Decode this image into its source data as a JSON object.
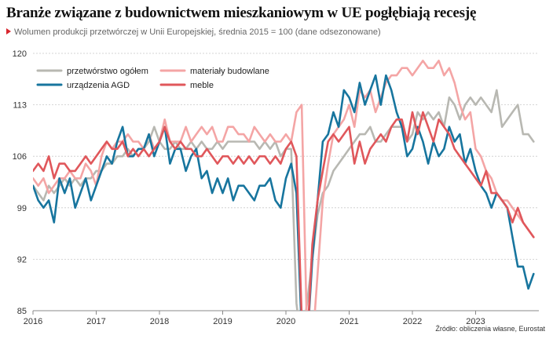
{
  "title": "Branże związane z budownictwem mieszkaniowym w UE pogłębiają recesję",
  "subtitle": "Wolumen produkcji przetwórczej w Unii Europejskiej, średnia 2015 = 100 (dane odsezonowane)",
  "source": "Źródło: obliczenia własne, Eurostat",
  "chart_data": {
    "type": "line",
    "ylim": [
      85,
      120
    ],
    "xlim": [
      2016,
      2024.0
    ],
    "yticks": [
      85,
      92,
      99,
      106,
      113,
      120
    ],
    "xticks": [
      2016,
      2017,
      2018,
      2019,
      2020,
      2021,
      2022,
      2023
    ],
    "xtick_labels": [
      "2016",
      "2017",
      "2018",
      "2019",
      "2020",
      "2021",
      "2022",
      "2023"
    ],
    "legend": "top-left",
    "series": [
      {
        "name": "przetwórstwo ogółem",
        "color": "#b8b8b2",
        "x": [
          2016.0,
          2016.083,
          2016.167,
          2016.25,
          2016.333,
          2016.417,
          2016.5,
          2016.583,
          2016.667,
          2016.75,
          2016.833,
          2016.917,
          2017.0,
          2017.083,
          2017.167,
          2017.25,
          2017.333,
          2017.417,
          2017.5,
          2017.583,
          2017.667,
          2017.75,
          2017.833,
          2017.917,
          2018.0,
          2018.083,
          2018.167,
          2018.25,
          2018.333,
          2018.417,
          2018.5,
          2018.583,
          2018.667,
          2018.75,
          2018.833,
          2018.917,
          2019.0,
          2019.083,
          2019.167,
          2019.25,
          2019.333,
          2019.417,
          2019.5,
          2019.583,
          2019.667,
          2019.75,
          2019.833,
          2019.917,
          2020.0,
          2020.083,
          2020.167,
          2020.25,
          2020.333,
          2020.417,
          2020.5,
          2020.583,
          2020.667,
          2020.75,
          2020.833,
          2020.917,
          2021.0,
          2021.083,
          2021.167,
          2021.25,
          2021.333,
          2021.417,
          2021.5,
          2021.583,
          2021.667,
          2021.75,
          2021.833,
          2021.917,
          2022.0,
          2022.083,
          2022.167,
          2022.25,
          2022.333,
          2022.417,
          2022.5,
          2022.583,
          2022.667,
          2022.75,
          2022.833,
          2022.917,
          2023.0,
          2023.083,
          2023.167,
          2023.25,
          2023.333,
          2023.417,
          2023.5,
          2023.583,
          2023.667,
          2023.75,
          2023.833,
          2023.917
        ],
        "values": [
          102,
          101,
          100,
          102,
          101,
          102,
          103,
          102,
          103,
          102,
          103,
          103,
          104,
          104,
          105,
          105,
          106,
          106,
          107,
          106,
          107,
          107,
          108,
          110,
          108,
          107,
          107,
          108,
          107,
          107,
          108,
          107,
          108,
          107,
          107,
          108,
          107,
          108,
          108,
          108,
          108,
          108,
          108,
          107,
          108,
          107,
          108,
          106,
          107,
          107,
          86,
          80,
          86,
          92,
          98,
          101,
          102,
          104,
          105,
          106,
          107,
          108,
          109,
          109,
          110,
          108,
          108,
          109,
          110,
          110,
          110,
          108,
          109,
          112,
          111,
          112,
          111,
          112,
          110,
          114,
          113,
          111,
          113,
          114,
          113,
          114,
          113,
          112,
          115,
          110,
          111,
          112,
          113,
          109,
          109,
          108
        ]
      },
      {
        "name": "materiały budowlane",
        "color": "#f4a5a5",
        "x": [
          2016.0,
          2016.083,
          2016.167,
          2016.25,
          2016.333,
          2016.417,
          2016.5,
          2016.583,
          2016.667,
          2016.75,
          2016.833,
          2016.917,
          2017.0,
          2017.083,
          2017.167,
          2017.25,
          2017.333,
          2017.417,
          2017.5,
          2017.583,
          2017.667,
          2017.75,
          2017.833,
          2017.917,
          2018.0,
          2018.083,
          2018.167,
          2018.25,
          2018.333,
          2018.417,
          2018.5,
          2018.583,
          2018.667,
          2018.75,
          2018.833,
          2018.917,
          2019.0,
          2019.083,
          2019.167,
          2019.25,
          2019.333,
          2019.417,
          2019.5,
          2019.583,
          2019.667,
          2019.75,
          2019.833,
          2019.917,
          2020.0,
          2020.083,
          2020.167,
          2020.25,
          2020.333,
          2020.417,
          2020.5,
          2020.583,
          2020.667,
          2020.75,
          2020.833,
          2020.917,
          2021.0,
          2021.083,
          2021.167,
          2021.25,
          2021.333,
          2021.417,
          2021.5,
          2021.583,
          2021.667,
          2021.75,
          2021.833,
          2021.917,
          2022.0,
          2022.083,
          2022.167,
          2022.25,
          2022.333,
          2022.417,
          2022.5,
          2022.583,
          2022.667,
          2022.75,
          2022.833,
          2022.917,
          2023.0,
          2023.083,
          2023.167,
          2023.25,
          2023.333,
          2023.417,
          2023.5,
          2023.583,
          2023.667,
          2023.75,
          2023.833,
          2023.917
        ],
        "values": [
          103,
          102,
          103,
          101,
          102,
          103,
          103,
          104,
          103,
          103,
          105,
          104,
          102,
          106,
          108,
          107,
          108,
          108,
          109,
          108,
          108,
          107,
          109,
          107,
          108,
          111,
          108,
          108,
          108,
          110,
          108,
          109,
          110,
          109,
          110,
          108,
          108,
          110,
          110,
          109,
          109,
          108,
          110,
          109,
          108,
          109,
          108,
          108,
          109,
          108,
          112,
          113,
          82,
          80,
          90,
          100,
          105,
          109,
          110,
          111,
          113,
          110,
          115,
          114,
          115,
          112,
          114,
          116,
          117,
          117,
          118,
          118,
          117,
          118,
          119,
          118,
          118,
          119,
          117,
          118,
          116,
          113,
          111,
          112,
          107,
          106,
          104,
          103,
          101,
          100,
          100,
          99,
          98,
          97,
          96,
          95
        ]
      },
      {
        "name": "urządzenia AGD",
        "color": "#17759e",
        "x": [
          2016.0,
          2016.083,
          2016.167,
          2016.25,
          2016.333,
          2016.417,
          2016.5,
          2016.583,
          2016.667,
          2016.75,
          2016.833,
          2016.917,
          2017.0,
          2017.083,
          2017.167,
          2017.25,
          2017.333,
          2017.417,
          2017.5,
          2017.583,
          2017.667,
          2017.75,
          2017.833,
          2017.917,
          2018.0,
          2018.083,
          2018.167,
          2018.25,
          2018.333,
          2018.417,
          2018.5,
          2018.583,
          2018.667,
          2018.75,
          2018.833,
          2018.917,
          2019.0,
          2019.083,
          2019.167,
          2019.25,
          2019.333,
          2019.417,
          2019.5,
          2019.583,
          2019.667,
          2019.75,
          2019.833,
          2019.917,
          2020.0,
          2020.083,
          2020.167,
          2020.25,
          2020.333,
          2020.417,
          2020.5,
          2020.583,
          2020.667,
          2020.75,
          2020.833,
          2020.917,
          2021.0,
          2021.083,
          2021.167,
          2021.25,
          2021.333,
          2021.417,
          2021.5,
          2021.583,
          2021.667,
          2021.75,
          2021.833,
          2021.917,
          2022.0,
          2022.083,
          2022.167,
          2022.25,
          2022.333,
          2022.417,
          2022.5,
          2022.583,
          2022.667,
          2022.75,
          2022.833,
          2022.917,
          2023.0,
          2023.083,
          2023.167,
          2023.25,
          2023.333,
          2023.417,
          2023.5,
          2023.583,
          2023.667,
          2023.75,
          2023.833,
          2023.917
        ],
        "values": [
          102,
          100,
          99,
          100,
          97,
          103,
          101,
          103,
          99,
          101,
          103,
          100,
          102,
          104,
          106,
          105,
          108,
          110,
          106,
          106,
          107,
          107,
          109,
          106,
          108,
          110,
          105,
          107,
          107,
          104,
          106,
          107,
          103,
          104,
          101,
          103,
          101,
          103,
          100,
          102,
          102,
          101,
          100,
          102,
          102,
          103,
          100,
          99,
          103,
          105,
          101,
          82,
          80,
          92,
          100,
          108,
          109,
          112,
          110,
          115,
          114,
          112,
          116,
          113,
          115,
          117,
          113,
          117,
          115,
          112,
          110,
          106,
          107,
          110,
          108,
          105,
          108,
          106,
          107,
          110,
          108,
          109,
          105,
          107,
          104,
          102,
          101,
          99,
          101,
          100,
          99,
          95,
          91,
          91,
          88,
          90
        ]
      },
      {
        "name": "meble",
        "color": "#e0575b",
        "x": [
          2016.0,
          2016.083,
          2016.167,
          2016.25,
          2016.333,
          2016.417,
          2016.5,
          2016.583,
          2016.667,
          2016.75,
          2016.833,
          2016.917,
          2017.0,
          2017.083,
          2017.167,
          2017.25,
          2017.333,
          2017.417,
          2017.5,
          2017.583,
          2017.667,
          2017.75,
          2017.833,
          2017.917,
          2018.0,
          2018.083,
          2018.167,
          2018.25,
          2018.333,
          2018.417,
          2018.5,
          2018.583,
          2018.667,
          2018.75,
          2018.833,
          2018.917,
          2019.0,
          2019.083,
          2019.167,
          2019.25,
          2019.333,
          2019.417,
          2019.5,
          2019.583,
          2019.667,
          2019.75,
          2019.833,
          2019.917,
          2020.0,
          2020.083,
          2020.167,
          2020.25,
          2020.333,
          2020.417,
          2020.5,
          2020.583,
          2020.667,
          2020.75,
          2020.833,
          2020.917,
          2021.0,
          2021.083,
          2021.167,
          2021.25,
          2021.333,
          2021.417,
          2021.5,
          2021.583,
          2021.667,
          2021.75,
          2021.833,
          2021.917,
          2022.0,
          2022.083,
          2022.167,
          2022.25,
          2022.333,
          2022.417,
          2022.5,
          2022.583,
          2022.667,
          2022.75,
          2022.833,
          2022.917,
          2023.0,
          2023.083,
          2023.167,
          2023.25,
          2023.333,
          2023.417,
          2023.5,
          2023.583,
          2023.667,
          2023.75,
          2023.833,
          2023.917
        ],
        "values": [
          104,
          105,
          104,
          106,
          103,
          105,
          105,
          104,
          104,
          105,
          106,
          105,
          106,
          107,
          108,
          107,
          107,
          108,
          106,
          107,
          106,
          107,
          106,
          107,
          108,
          110,
          108,
          107,
          108,
          107,
          107,
          106,
          106,
          107,
          106,
          105,
          106,
          106,
          105,
          106,
          105,
          106,
          105,
          106,
          106,
          105,
          106,
          105,
          107,
          108,
          106,
          84,
          80,
          94,
          100,
          104,
          108,
          109,
          108,
          109,
          110,
          105,
          108,
          105,
          107,
          108,
          109,
          108,
          110,
          111,
          111,
          108,
          112,
          109,
          112,
          110,
          108,
          111,
          110,
          109,
          107,
          106,
          105,
          104,
          103,
          102,
          104,
          101,
          101,
          100,
          99,
          97,
          99,
          97,
          96,
          95
        ]
      }
    ]
  }
}
